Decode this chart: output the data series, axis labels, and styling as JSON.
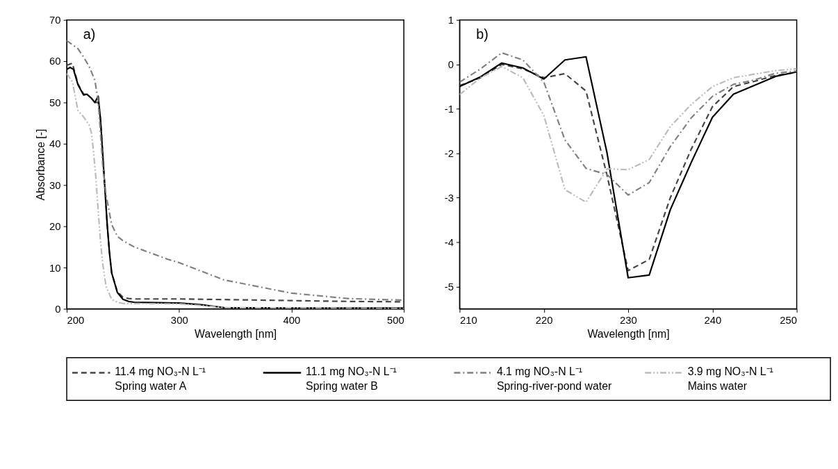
{
  "chart_data": [
    {
      "type": "line",
      "annotations": [
        "a)"
      ],
      "xlabel": "Wavelength [nm]",
      "ylabel": "Absorbance [-]",
      "xlim": [
        200,
        500
      ],
      "xticks": [
        200,
        300,
        400,
        500
      ],
      "ylim": [
        0,
        70
      ],
      "yticks": [
        0,
        10,
        20,
        30,
        40,
        50,
        60,
        70
      ],
      "legend": "bottom",
      "grid": false,
      "series": [
        {
          "name": "11.4 mg NO₃-N L⁻¹\nSpring water A",
          "color": "#444444",
          "line_style": "dashed",
          "x": [
            200,
            205,
            210,
            215,
            218,
            222,
            225,
            228,
            230,
            232,
            234,
            236,
            238,
            240,
            245,
            250,
            255,
            260,
            300,
            350,
            400,
            450,
            500
          ],
          "values": [
            59,
            59.5,
            54.5,
            52,
            52,
            51,
            50,
            50,
            46,
            37.6,
            29,
            20.4,
            13.7,
            8.7,
            4.2,
            2.8,
            2.5,
            2.4,
            2.4,
            2.2,
            2,
            1.8,
            1.7
          ]
        },
        {
          "name": "11.1 mg NO₃-N L⁻¹\nSpring water B",
          "color": "#000000",
          "line_style": "solid",
          "x": [
            200,
            203,
            206,
            210,
            215,
            218,
            222,
            225,
            228,
            230,
            232,
            234,
            236,
            238,
            240,
            245,
            250,
            255,
            260,
            280,
            300,
            320,
            340,
            400,
            500
          ],
          "values": [
            58,
            58.5,
            58,
            54.3,
            51.8,
            52,
            51,
            50,
            51.5,
            46,
            37.6,
            29,
            20.4,
            13.7,
            8.7,
            4,
            2.3,
            1.8,
            1.6,
            1.5,
            1.4,
            1,
            0.3,
            0.2,
            0.2
          ]
        },
        {
          "name": "4.1 mg NO₃-N L⁻¹\nSpring-river-pond water",
          "color": "#808080",
          "line_style": "dashdot",
          "x": [
            200,
            205,
            210,
            215,
            220,
            225,
            228,
            230,
            232,
            235,
            240,
            245,
            250,
            260,
            280,
            290,
            300,
            340,
            400,
            450,
            500
          ],
          "values": [
            65,
            64,
            63,
            61,
            58.7,
            55.4,
            50.4,
            42.6,
            34.8,
            27.6,
            20.4,
            17.6,
            16.5,
            15,
            13,
            12,
            11.2,
            7,
            3.8,
            2.5,
            2.1
          ]
        },
        {
          "name": "3.9 mg NO₃-N L⁻¹\nMains water",
          "color": "#bbbbbb",
          "line_style": "dashdotdot",
          "x": [
            200,
            205,
            210,
            215,
            220,
            222,
            224,
            226,
            228,
            230,
            232,
            235,
            240,
            245,
            250,
            300,
            320,
            340,
            500
          ],
          "values": [
            57,
            55,
            48,
            46.5,
            44.5,
            42.6,
            37.6,
            31.5,
            23.7,
            16.5,
            11,
            5.4,
            2.3,
            1.6,
            1.3,
            1.2,
            0.8,
            0.3,
            0.1
          ]
        }
      ]
    },
    {
      "type": "line",
      "annotations": [
        "b)"
      ],
      "xlabel": "Wavelength [nm]",
      "xlim": [
        210,
        250
      ],
      "xticks": [
        210,
        220,
        230,
        240,
        250
      ],
      "ylim": [
        -5.5,
        1
      ],
      "yticks": [
        -5,
        -4,
        -3,
        -2,
        -1,
        0,
        1
      ],
      "grid": false,
      "x": [
        210,
        212.5,
        215,
        217.5,
        220,
        222.5,
        225,
        227.5,
        230,
        232.5,
        235,
        237.5,
        240,
        242.5,
        245,
        247.5,
        250
      ],
      "series": [
        {
          "color": "#444444",
          "line_style": "dashed",
          "values": [
            -0.48,
            -0.3,
            0,
            -0.1,
            -0.3,
            -0.21,
            -0.6,
            -2.5,
            -4.64,
            -4.39,
            -3,
            -1.9,
            -0.95,
            -0.5,
            -0.38,
            -0.25,
            -0.18
          ]
        },
        {
          "color": "#000000",
          "line_style": "solid",
          "values": [
            -0.5,
            -0.28,
            0.03,
            -0.08,
            -0.33,
            0.1,
            0.17,
            -2,
            -4.8,
            -4.74,
            -3.27,
            -2.2,
            -1.19,
            -0.67,
            -0.47,
            -0.27,
            -0.17
          ]
        },
        {
          "color": "#808080",
          "line_style": "dashdot",
          "values": [
            -0.4,
            -0.1,
            0.26,
            0.1,
            -0.4,
            -1.7,
            -2.34,
            -2.48,
            -2.94,
            -2.66,
            -1.85,
            -1.2,
            -0.72,
            -0.45,
            -0.35,
            -0.2,
            -0.15
          ]
        },
        {
          "color": "#bbbbbb",
          "line_style": "dashdotdot",
          "values": [
            -0.68,
            -0.3,
            -0.05,
            -0.3,
            -1.15,
            -2.82,
            -3.1,
            -2.35,
            -2.37,
            -2.14,
            -1.4,
            -0.9,
            -0.5,
            -0.3,
            -0.22,
            -0.14,
            -0.1
          ]
        }
      ]
    }
  ]
}
